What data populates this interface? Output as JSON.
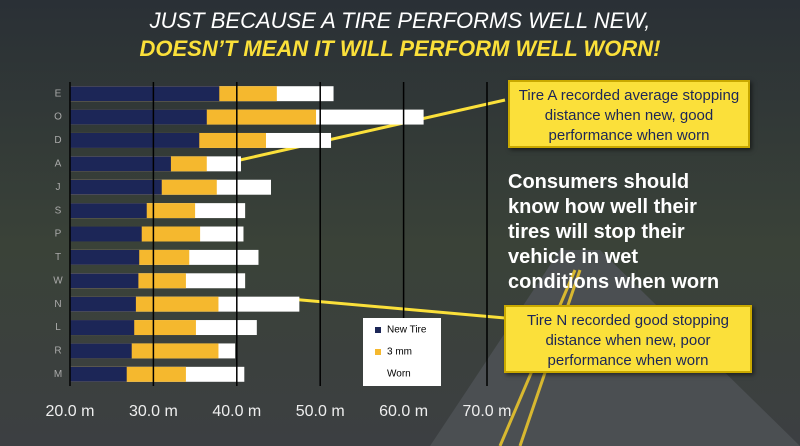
{
  "chart_data": {
    "type": "bar",
    "orientation": "horizontal",
    "title": "JUST BECAUSE A TIRE PERFORMS WELL NEW,",
    "subtitle": "DOESN’T MEAN IT WILL PERFORM WELL WORN!",
    "categories": [
      "E",
      "O",
      "D",
      "A",
      "J",
      "S",
      "P",
      "T",
      "W",
      "N",
      "L",
      "R",
      "M"
    ],
    "series": [
      {
        "name": "Worn",
        "color": "#ffffff",
        "values": [
          51.6,
          62.4,
          51.3,
          40.5,
          44.1,
          41.0,
          40.8,
          42.6,
          41.0,
          47.5,
          42.4,
          39.8,
          40.9
        ]
      },
      {
        "name": "3 mm",
        "color": "#f5b82e",
        "values": [
          44.8,
          49.5,
          43.5,
          36.4,
          37.6,
          35.0,
          35.6,
          34.3,
          33.9,
          37.8,
          35.1,
          37.8,
          33.9
        ]
      },
      {
        "name": "New Tire",
        "color": "#1c2657",
        "values": [
          37.9,
          36.4,
          35.5,
          32.1,
          31.0,
          29.2,
          28.6,
          28.3,
          28.2,
          27.9,
          27.7,
          27.4,
          26.8
        ]
      }
    ],
    "xlim": [
      20,
      70
    ],
    "xticks": [
      {
        "value": 20,
        "label": "20.0 m"
      },
      {
        "value": 30,
        "label": "30.0 m"
      },
      {
        "value": 40,
        "label": "40.0 m"
      },
      {
        "value": 50,
        "label": "50.0 m"
      },
      {
        "value": 60,
        "label": "60.0 m"
      },
      {
        "value": 70,
        "label": "70.0 m"
      }
    ],
    "grid": true,
    "annotations": [
      "Tire A recorded average stopping distance when new, good performance when worn",
      "Consumers should know how well their tires will stop their vehicle in wet conditions when worn",
      "Tire N recorded good stopping distance when new, poor performance when worn"
    ]
  }
}
